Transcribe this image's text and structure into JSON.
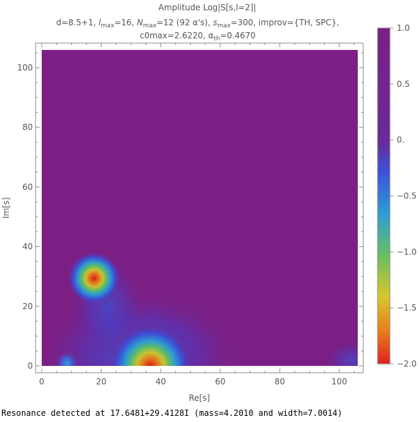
{
  "chart_data": {
    "type": "heatmap",
    "title_lines": [
      "Amplitude Log|S[s,l=2]|",
      "d=8.5+1, l_max=16, N_max=12 (92 α's), s_max=300, improv={TH, SPC},",
      "c0max=2.6220, α_th=0.4670"
    ],
    "title_parts": {
      "line1": "Amplitude Log|S[s,l=2]|",
      "line2_a": "d=8.5+1, ",
      "line2_l": "l",
      "line2_l_sub": "max",
      "line2_b": "=16, ",
      "line2_N": "N",
      "line2_N_sub": "max",
      "line2_c": "=12 (92 α's), ",
      "line2_s": "s",
      "line2_s_sub": "max",
      "line2_d": "=300, improv={TH, SPC},",
      "line3_a": "c0max=2.6220, α",
      "line3_sub": "th",
      "line3_b": "=0.4670"
    },
    "xlabel": "Re[s]",
    "ylabel": "Im[s]",
    "xlim": [
      0,
      106
    ],
    "ylim": [
      0,
      106
    ],
    "xticks": [
      0,
      20,
      40,
      60,
      80,
      100
    ],
    "yticks": [
      0,
      20,
      40,
      60,
      80,
      100
    ],
    "xtick_labels": [
      "0",
      "20",
      "40",
      "60",
      "80",
      "100"
    ],
    "ytick_labels": [
      "0",
      "20",
      "40",
      "60",
      "80",
      "100"
    ],
    "colorbar": {
      "range": [
        -2.0,
        1.0
      ],
      "ticks": [
        1.0,
        0.5,
        0.0,
        -0.5,
        -1.0,
        -1.5,
        -2.0
      ],
      "tick_labels": [
        "1.0",
        "0.5",
        "0.",
        "−0.5",
        "−1.0",
        "−1.5",
        "−2.0"
      ]
    },
    "background_value": 1.0,
    "features": [
      {
        "type": "minimum",
        "x": 17.6,
        "y": 29.4,
        "value": -2.0
      },
      {
        "type": "minimum",
        "x": 36.5,
        "y": 0.0,
        "value": -2.0
      },
      {
        "type": "minimum",
        "x": 8.5,
        "y": 1.0,
        "value": -0.2
      }
    ],
    "grid": false
  },
  "status_text": "Resonance detected at 17.6481+29.4128I (mass=4.2010 and width=7.0014)"
}
